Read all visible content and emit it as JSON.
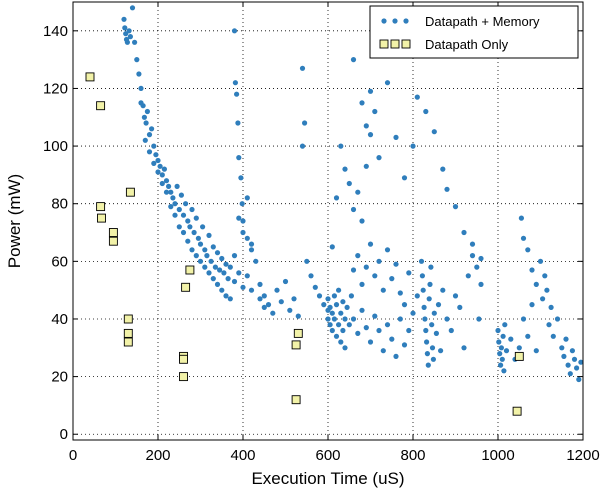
{
  "chart_data": {
    "type": "scatter",
    "title": "",
    "xlabel": "Execution Time (uS)",
    "ylabel": "Power (mW)",
    "xlim": [
      0,
      1200
    ],
    "ylim": [
      -2,
      150
    ],
    "xticks": [
      0,
      200,
      400,
      600,
      800,
      1000,
      1200
    ],
    "yticks": [
      0,
      20,
      40,
      60,
      80,
      100,
      120,
      140
    ],
    "grid": "dotted",
    "legend_position": "top-right",
    "series": [
      {
        "name": "Datapath + Memory",
        "marker": "circle",
        "color": "#2f7ebc",
        "points": [
          [
            120,
            144
          ],
          [
            122,
            141
          ],
          [
            124,
            139
          ],
          [
            126,
            137
          ],
          [
            128,
            136
          ],
          [
            132,
            140
          ],
          [
            135,
            138
          ],
          [
            140,
            148
          ],
          [
            145,
            136
          ],
          [
            150,
            130
          ],
          [
            155,
            125
          ],
          [
            160,
            120
          ],
          [
            165,
            114
          ],
          [
            168,
            110
          ],
          [
            172,
            108
          ],
          [
            175,
            112
          ],
          [
            180,
            104
          ],
          [
            185,
            106
          ],
          [
            190,
            100
          ],
          [
            195,
            97
          ],
          [
            200,
            95
          ],
          [
            205,
            93
          ],
          [
            210,
            90
          ],
          [
            215,
            92
          ],
          [
            220,
            88
          ],
          [
            225,
            86
          ],
          [
            230,
            84
          ],
          [
            235,
            82
          ],
          [
            240,
            80
          ],
          [
            245,
            86
          ],
          [
            250,
            78
          ],
          [
            255,
            83
          ],
          [
            260,
            76
          ],
          [
            265,
            80
          ],
          [
            270,
            74
          ],
          [
            275,
            72
          ],
          [
            280,
            78
          ],
          [
            285,
            70
          ],
          [
            290,
            75
          ],
          [
            295,
            68
          ],
          [
            300,
            66
          ],
          [
            305,
            72
          ],
          [
            310,
            64
          ],
          [
            315,
            62
          ],
          [
            320,
            69
          ],
          [
            325,
            60
          ],
          [
            330,
            65
          ],
          [
            335,
            58
          ],
          [
            340,
            63
          ],
          [
            345,
            57
          ],
          [
            350,
            61
          ],
          [
            355,
            56
          ],
          [
            360,
            59
          ],
          [
            365,
            54
          ],
          [
            370,
            58
          ],
          [
            380,
            53
          ],
          [
            390,
            56
          ],
          [
            400,
            51
          ],
          [
            410,
            55
          ],
          [
            420,
            50
          ],
          [
            160,
            115
          ],
          [
            170,
            102
          ],
          [
            180,
            98
          ],
          [
            190,
            94
          ],
          [
            200,
            91
          ],
          [
            210,
            87
          ],
          [
            220,
            84
          ],
          [
            230,
            79
          ],
          [
            240,
            76
          ],
          [
            250,
            72
          ],
          [
            260,
            70
          ],
          [
            270,
            67
          ],
          [
            280,
            64
          ],
          [
            290,
            62
          ],
          [
            300,
            60
          ],
          [
            310,
            58
          ],
          [
            320,
            56
          ],
          [
            330,
            54
          ],
          [
            340,
            52
          ],
          [
            350,
            50
          ],
          [
            360,
            48
          ],
          [
            370,
            47
          ],
          [
            380,
            62
          ],
          [
            390,
            75
          ],
          [
            400,
            70
          ],
          [
            410,
            82
          ],
          [
            420,
            66
          ],
          [
            430,
            60
          ],
          [
            440,
            47
          ],
          [
            450,
            44
          ],
          [
            380,
            140
          ],
          [
            382,
            122
          ],
          [
            385,
            118
          ],
          [
            388,
            108
          ],
          [
            390,
            96
          ],
          [
            395,
            89
          ],
          [
            398,
            80
          ],
          [
            400,
            74
          ],
          [
            410,
            68
          ],
          [
            420,
            64
          ],
          [
            440,
            52
          ],
          [
            450,
            48
          ],
          [
            460,
            45
          ],
          [
            470,
            42
          ],
          [
            480,
            50
          ],
          [
            490,
            46
          ],
          [
            500,
            53
          ],
          [
            510,
            43
          ],
          [
            520,
            47
          ],
          [
            530,
            41
          ],
          [
            540,
            100
          ],
          [
            545,
            108
          ],
          [
            540,
            127
          ],
          [
            550,
            60
          ],
          [
            560,
            55
          ],
          [
            570,
            51
          ],
          [
            580,
            48
          ],
          [
            590,
            45
          ],
          [
            600,
            43
          ],
          [
            600,
            47
          ],
          [
            600,
            40
          ],
          [
            605,
            38
          ],
          [
            605,
            44
          ],
          [
            610,
            42
          ],
          [
            610,
            36
          ],
          [
            615,
            48
          ],
          [
            615,
            40
          ],
          [
            620,
            34
          ],
          [
            620,
            45
          ],
          [
            625,
            38
          ],
          [
            625,
            50
          ],
          [
            630,
            32
          ],
          [
            630,
            42
          ],
          [
            635,
            46
          ],
          [
            635,
            36
          ],
          [
            640,
            40
          ],
          [
            640,
            30
          ],
          [
            645,
            44
          ],
          [
            650,
            38
          ],
          [
            655,
            48
          ],
          [
            610,
            65
          ],
          [
            620,
            82
          ],
          [
            630,
            100
          ],
          [
            640,
            92
          ],
          [
            650,
            87
          ],
          [
            660,
            78
          ],
          [
            670,
            84
          ],
          [
            680,
            74
          ],
          [
            690,
            93
          ],
          [
            700,
            104
          ],
          [
            660,
            130
          ],
          [
            680,
            115
          ],
          [
            690,
            107
          ],
          [
            700,
            119
          ],
          [
            710,
            112
          ],
          [
            720,
            96
          ],
          [
            740,
            122
          ],
          [
            760,
            103
          ],
          [
            780,
            89
          ],
          [
            800,
            100
          ],
          [
            660,
            40
          ],
          [
            670,
            35
          ],
          [
            680,
            43
          ],
          [
            690,
            37
          ],
          [
            700,
            32
          ],
          [
            710,
            41
          ],
          [
            720,
            36
          ],
          [
            730,
            29
          ],
          [
            740,
            38
          ],
          [
            750,
            33
          ],
          [
            660,
            57
          ],
          [
            670,
            62
          ],
          [
            680,
            52
          ],
          [
            690,
            58
          ],
          [
            700,
            66
          ],
          [
            710,
            55
          ],
          [
            720,
            60
          ],
          [
            730,
            50
          ],
          [
            740,
            64
          ],
          [
            750,
            54
          ],
          [
            760,
            59
          ],
          [
            770,
            49
          ],
          [
            780,
            45
          ],
          [
            790,
            56
          ],
          [
            800,
            42
          ],
          [
            810,
            48
          ],
          [
            790,
            36
          ],
          [
            780,
            31
          ],
          [
            770,
            40
          ],
          [
            760,
            27
          ],
          [
            820,
            60
          ],
          [
            822,
            55
          ],
          [
            824,
            50
          ],
          [
            826,
            44
          ],
          [
            828,
            40
          ],
          [
            830,
            36
          ],
          [
            832,
            32
          ],
          [
            834,
            28
          ],
          [
            836,
            24
          ],
          [
            838,
            47
          ],
          [
            840,
            52
          ],
          [
            842,
            58
          ],
          [
            844,
            38
          ],
          [
            846,
            30
          ],
          [
            848,
            26
          ],
          [
            850,
            42
          ],
          [
            855,
            35
          ],
          [
            860,
            45
          ],
          [
            865,
            29
          ],
          [
            870,
            50
          ],
          [
            880,
            40
          ],
          [
            890,
            36
          ],
          [
            900,
            48
          ],
          [
            910,
            44
          ],
          [
            920,
            30
          ],
          [
            930,
            55
          ],
          [
            940,
            62
          ],
          [
            950,
            58
          ],
          [
            955,
            40
          ],
          [
            960,
            52
          ],
          [
            800,
            140
          ],
          [
            810,
            117
          ],
          [
            830,
            112
          ],
          [
            850,
            105
          ],
          [
            870,
            92
          ],
          [
            880,
            85
          ],
          [
            900,
            79
          ],
          [
            920,
            70
          ],
          [
            940,
            66
          ],
          [
            960,
            61
          ],
          [
            1000,
            36
          ],
          [
            1002,
            32
          ],
          [
            1004,
            28
          ],
          [
            1006,
            24
          ],
          [
            1008,
            30
          ],
          [
            1010,
            26
          ],
          [
            1012,
            34
          ],
          [
            1014,
            22
          ],
          [
            1016,
            38
          ],
          [
            1020,
            29
          ],
          [
            1030,
            33
          ],
          [
            1040,
            26
          ],
          [
            1050,
            30
          ],
          [
            1055,
            75
          ],
          [
            1060,
            68
          ],
          [
            1070,
            64
          ],
          [
            1080,
            57
          ],
          [
            1090,
            52
          ],
          [
            1100,
            60
          ],
          [
            1105,
            47
          ],
          [
            1110,
            55
          ],
          [
            1115,
            50
          ],
          [
            1120,
            38
          ],
          [
            1125,
            44
          ],
          [
            1130,
            34
          ],
          [
            1140,
            40
          ],
          [
            1150,
            30
          ],
          [
            1155,
            27
          ],
          [
            1160,
            33
          ],
          [
            1165,
            24
          ],
          [
            1170,
            21
          ],
          [
            1175,
            29
          ],
          [
            1180,
            26
          ],
          [
            1185,
            23
          ],
          [
            1190,
            19
          ],
          [
            1195,
            25
          ],
          [
            1060,
            40
          ],
          [
            1070,
            34
          ],
          [
            1080,
            45
          ],
          [
            1090,
            29
          ]
        ]
      },
      {
        "name": "Datapath Only",
        "marker": "square",
        "color": "#f2f2a8",
        "points": [
          [
            40,
            124
          ],
          [
            65,
            114
          ],
          [
            65,
            79
          ],
          [
            67,
            75
          ],
          [
            95,
            70
          ],
          [
            95,
            67
          ],
          [
            135,
            84
          ],
          [
            130,
            40
          ],
          [
            130,
            35
          ],
          [
            130,
            32
          ],
          [
            260,
            27
          ],
          [
            260,
            26
          ],
          [
            260,
            20
          ],
          [
            265,
            51
          ],
          [
            275,
            57
          ],
          [
            525,
            31
          ],
          [
            530,
            35
          ],
          [
            525,
            12
          ],
          [
            1050,
            27
          ],
          [
            1045,
            8
          ]
        ]
      }
    ]
  }
}
